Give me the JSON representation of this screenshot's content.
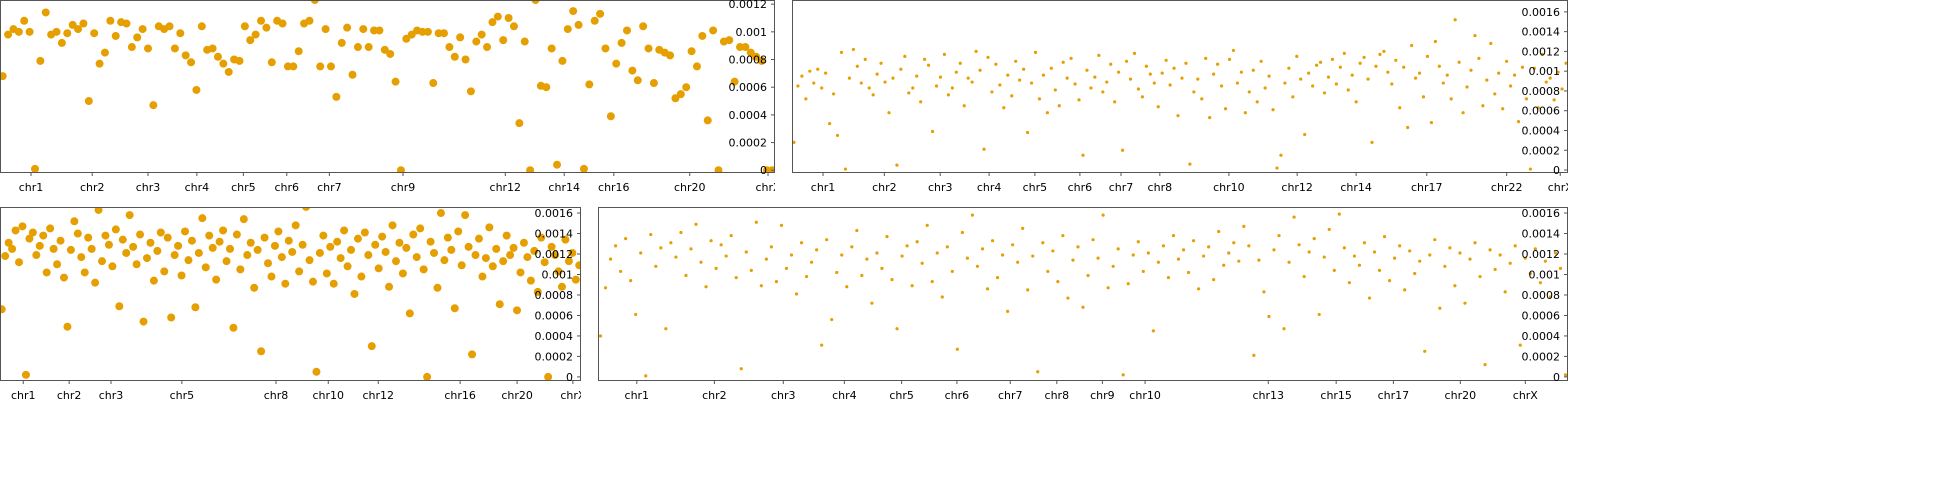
{
  "chart_data": [
    {
      "type": "scatter",
      "color": "#e69f00",
      "marker_size": 4,
      "xlim": [
        0,
        1
      ],
      "ylim": [
        -2e-05,
        0.00123
      ],
      "yticks": [
        0,
        0.0002,
        0.0004,
        0.0006,
        0.0008,
        0.001,
        0.0012
      ],
      "xticks": [
        {
          "value": 0.04,
          "label": "chr1"
        },
        {
          "value": 0.119,
          "label": "chr2"
        },
        {
          "value": 0.191,
          "label": "chr3"
        },
        {
          "value": 0.254,
          "label": "chr4"
        },
        {
          "value": 0.314,
          "label": "chr5"
        },
        {
          "value": 0.37,
          "label": "chr6"
        },
        {
          "value": 0.425,
          "label": "chr7"
        },
        {
          "value": 0.52,
          "label": "chr9"
        },
        {
          "value": 0.652,
          "label": "chr12"
        },
        {
          "value": 0.728,
          "label": "chr14"
        },
        {
          "value": 0.792,
          "label": "chr16"
        },
        {
          "value": 0.89,
          "label": "chr20"
        },
        {
          "value": 0.991,
          "label": "chrX"
        }
      ],
      "values": [
        0.00068,
        0.00098,
        0.00102,
        0.001,
        0.00108,
        0.001,
        1e-05,
        0.00079,
        0.00114,
        0.00098,
        0.001,
        0.00092,
        0.00099,
        0.00105,
        0.00102,
        0.00106,
        0.0005,
        0.00099,
        0.00077,
        0.00085,
        0.00108,
        0.00097,
        0.00107,
        0.00106,
        0.00089,
        0.00096,
        0.00102,
        0.00088,
        0.00047,
        0.00104,
        0.00102,
        0.00104,
        0.00088,
        0.00099,
        0.00083,
        0.00078,
        0.00058,
        0.00104,
        0.00087,
        0.00088,
        0.00082,
        0.00077,
        0.00071,
        0.0008,
        0.00079,
        0.00104,
        0.00094,
        0.00098,
        0.00108,
        0.00103,
        0.00078,
        0.00108,
        0.00106,
        0.00075,
        0.00075,
        0.00086,
        0.00106,
        0.00108,
        0.00123,
        0.00075,
        0.00102,
        0.00075,
        0.00053,
        0.00092,
        0.00103,
        0.00069,
        0.00089,
        0.00102,
        0.00089,
        0.00101,
        0.00101,
        0.00087,
        0.00084,
        0.00064,
        0,
        0.00095,
        0.00098,
        0.00101,
        0.001,
        0.001,
        0.00063,
        0.00099,
        0.00099,
        0.00089,
        0.00082,
        0.00096,
        0.0008,
        0.00057,
        0.00093,
        0.00098,
        0.00089,
        0.00107,
        0.00111,
        0.00094,
        0.0011,
        0.00104,
        0.00034,
        0.00093,
        0,
        0.00123,
        0.00061,
        0.0006,
        0.00088,
        4e-05,
        0.00079,
        0.00102,
        0.00115,
        0.00105,
        1e-05,
        0.00062,
        0.00108,
        0.00113,
        0.00088,
        0.00039,
        0.00077,
        0.00092,
        0.00101,
        0.00072,
        0.00065,
        0.00104,
        0.00088,
        0.00063,
        0.00087,
        0.00085,
        0.00083,
        0.00052,
        0.00055,
        0.0006,
        0.00086,
        0.00075,
        0.00097,
        0.00036,
        0.00101,
        0,
        0.00093,
        0.00094,
        0.00064,
        0.00089,
        0.00089,
        0.00085,
        0.00082,
        0.00079,
        0,
        0
      ]
    },
    {
      "type": "scatter",
      "color": "#e69f00",
      "marker_size": 1.6,
      "xlim": [
        0,
        1
      ],
      "ylim": [
        -3e-05,
        0.00172
      ],
      "yticks": [
        0,
        0.0002,
        0.0004,
        0.0006,
        0.0008,
        0.001,
        0.0012,
        0.0014,
        0.0016
      ],
      "xticks": [
        {
          "value": 0.04,
          "label": "chr1"
        },
        {
          "value": 0.119,
          "label": "chr2"
        },
        {
          "value": 0.191,
          "label": "chr3"
        },
        {
          "value": 0.254,
          "label": "chr4"
        },
        {
          "value": 0.313,
          "label": "chr5"
        },
        {
          "value": 0.371,
          "label": "chr6"
        },
        {
          "value": 0.424,
          "label": "chr7"
        },
        {
          "value": 0.474,
          "label": "chr8"
        },
        {
          "value": 0.563,
          "label": "chr10"
        },
        {
          "value": 0.651,
          "label": "chr12"
        },
        {
          "value": 0.727,
          "label": "chr14"
        },
        {
          "value": 0.818,
          "label": "chr17"
        },
        {
          "value": 0.921,
          "label": "chr22"
        },
        {
          "value": 0.99,
          "label": "chrX"
        }
      ],
      "values": [
        0.00028,
        0.00085,
        0.00095,
        0.00072,
        0.001,
        0.00088,
        0.00102,
        0.00083,
        0.00098,
        0.00047,
        0.00077,
        0.00035,
        0.00119,
        1e-05,
        0.00093,
        0.00122,
        0.00105,
        0.00088,
        0.00112,
        0.00083,
        0.00076,
        0.00097,
        0.00108,
        0.00089,
        0.00058,
        0.00093,
        5e-05,
        0.00102,
        0.00115,
        0.00078,
        0.00083,
        0.00095,
        0.00069,
        0.00112,
        0.00106,
        0.00039,
        0.00085,
        0.00094,
        0.00117,
        0.00076,
        0.00083,
        0.00099,
        0.00108,
        0.00065,
        0.00093,
        0.00089,
        0.0012,
        0.00101,
        0.00021,
        0.00114,
        0.00079,
        0.00107,
        0.00086,
        0.00063,
        0.00096,
        0.00075,
        0.0011,
        0.00091,
        0.00102,
        0.00038,
        0.00088,
        0.00119,
        0.00072,
        0.00096,
        0.00058,
        0.00103,
        0.00081,
        0.00065,
        0.00109,
        0.00093,
        0.00113,
        0.00087,
        0.00071,
        0.00015,
        0.00101,
        0.00083,
        0.00094,
        0.00116,
        0.00079,
        0.00089,
        0.00107,
        0.00069,
        0.00099,
        0.0002,
        0.0011,
        0.00092,
        0.00118,
        0.00082,
        0.00074,
        0.00105,
        0.00097,
        0.00088,
        0.00064,
        0.00098,
        0.00111,
        0.00086,
        0.00103,
        0.00055,
        0.00093,
        0.00108,
        6e-05,
        0.00079,
        0.00092,
        0.00072,
        0.00113,
        0.00053,
        0.00097,
        0.00107,
        0.00085,
        0.00062,
        0.00112,
        0.00121,
        0.00088,
        0.00099,
        0.00058,
        0.00079,
        0.00101,
        0.00069,
        0.0011,
        0.00083,
        0.00095,
        0.00061,
        2e-05,
        0.00015,
        0.00088,
        0.00103,
        0.00074,
        0.00115,
        0.00092,
        0.00036,
        0.00098,
        0.00085,
        0.00106,
        0.00109,
        0.00078,
        0.00094,
        0.00112,
        0.00087,
        0.00104,
        0.00118,
        0.00081,
        0.00096,
        0.00069,
        0.00108,
        0.00114,
        0.00092,
        0.00028,
        0.00105,
        0.00117,
        0.0012,
        0.00099,
        0.00087,
        0.00111,
        0.00063,
        0.00104,
        0.00043,
        0.00126,
        0.00093,
        0.00098,
        0.00074,
        0.00115,
        0.00048,
        0.0013,
        0.00105,
        0.00088,
        0.00096,
        0.00072,
        0.00152,
        0.00109,
        0.00058,
        0.00084,
        0.00101,
        0.00136,
        0.00113,
        0.00065,
        0.00091,
        0.00128,
        0.00077,
        0.00098,
        0.00062,
        0.0011,
        0.00085,
        0.00096,
        0.00049,
        0.00104,
        0.00072,
        1e-05,
        0.00103,
        0.00063,
        0.00117,
        0.00089,
        0.00093,
        0.00071,
        0.00099,
        0.00082,
        0.00108
      ]
    },
    {
      "type": "scatter",
      "color": "#e69f00",
      "marker_size": 4,
      "xlim": [
        0,
        1
      ],
      "ylim": [
        -4e-05,
        0.001659
      ],
      "yticks": [
        0,
        0.0002,
        0.0004,
        0.0006,
        0.0008,
        0.001,
        0.0012,
        0.0014,
        0.0016
      ],
      "xticks": [
        {
          "value": 0.04,
          "label": "chr1"
        },
        {
          "value": 0.119,
          "label": "chr2"
        },
        {
          "value": 0.191,
          "label": "chr3"
        },
        {
          "value": 0.313,
          "label": "chr5"
        },
        {
          "value": 0.475,
          "label": "chr8"
        },
        {
          "value": 0.565,
          "label": "chr10"
        },
        {
          "value": 0.651,
          "label": "chr12"
        },
        {
          "value": 0.792,
          "label": "chr16"
        },
        {
          "value": 0.89,
          "label": "chr20"
        },
        {
          "value": 0.986,
          "label": "chrX"
        }
      ],
      "values": [
        0.00066,
        0.00118,
        0.00131,
        0.00125,
        0.00143,
        0.00112,
        0.00147,
        2e-05,
        0.00135,
        0.00141,
        0.00119,
        0.00128,
        0.00138,
        0.00102,
        0.00145,
        0.00125,
        0.0011,
        0.00133,
        0.00097,
        0.00049,
        0.00124,
        0.00152,
        0.0014,
        0.00117,
        0.00102,
        0.00136,
        0.00125,
        0.00092,
        0.00163,
        0.00113,
        0.00138,
        0.00129,
        0.00108,
        0.00144,
        0.00069,
        0.00134,
        0.00121,
        0.00158,
        0.00127,
        0.0011,
        0.00139,
        0.00054,
        0.00116,
        0.00131,
        0.00094,
        0.00123,
        0.00141,
        0.00103,
        0.00136,
        0.00058,
        0.00119,
        0.00128,
        0.00099,
        0.00142,
        0.00114,
        0.00133,
        0.00068,
        0.00121,
        0.00155,
        0.00107,
        0.00138,
        0.00126,
        0.00095,
        0.00132,
        0.00143,
        0.00113,
        0.00125,
        0.00048,
        0.00139,
        0.00105,
        0.00154,
        0.00119,
        0.00131,
        0.00087,
        0.00124,
        0.00025,
        0.00136,
        0.00111,
        0.00098,
        0.00128,
        0.00142,
        0.00117,
        0.00091,
        0.00133,
        0.00122,
        0.00148,
        0.00103,
        0.00129,
        0.00166,
        0.00114,
        0.00093,
        5e-05,
        0.00121,
        0.00138,
        0.00101,
        0.00127,
        0.00091,
        0.00132,
        0.00116,
        0.00143,
        0.00108,
        0.00124,
        0.00081,
        0.00135,
        0.00098,
        0.00141,
        0.00119,
        0.0003,
        0.00129,
        0.00106,
        0.00137,
        0.00122,
        0.00088,
        0.00148,
        0.00113,
        0.00131,
        0.00101,
        0.00126,
        0.00062,
        0.00139,
        0.00117,
        0.00145,
        0.00105,
        0,
        0.00132,
        0.00121,
        0.00087,
        0.0016,
        0.00114,
        0.00136,
        0.00124,
        0.00067,
        0.00142,
        0.00109,
        0.00158,
        0.00127,
        0.00022,
        0.00119,
        0.00135,
        0.00098,
        0.00116,
        0.00146,
        0.00108,
        0.00125,
        0.00071,
        0.00113,
        0.00138,
        0.00119,
        0.00126,
        0.00065,
        0.00102,
        0.00131,
        0.00117,
        0.00094,
        0.00123,
        0.00083,
        0.00136,
        0.00112,
        0,
        0.00127,
        0.00119,
        0.00103,
        0.00088,
        0.00134,
        0.00113,
        0.00121,
        0.00095,
        0.00109
      ]
    },
    {
      "type": "scatter",
      "color": "#e69f00",
      "marker_size": 1.6,
      "xlim": [
        0,
        1
      ],
      "ylim": [
        -4e-05,
        0.001659
      ],
      "yticks": [
        0,
        0.0002,
        0.0004,
        0.0006,
        0.0008,
        0.001,
        0.0012,
        0.0014,
        0.0016
      ],
      "xticks": [
        {
          "value": 0.04,
          "label": "chr1"
        },
        {
          "value": 0.12,
          "label": "chr2"
        },
        {
          "value": 0.191,
          "label": "chr3"
        },
        {
          "value": 0.254,
          "label": "chr4"
        },
        {
          "value": 0.313,
          "label": "chr5"
        },
        {
          "value": 0.37,
          "label": "chr6"
        },
        {
          "value": 0.425,
          "label": "chr7"
        },
        {
          "value": 0.473,
          "label": "chr8"
        },
        {
          "value": 0.52,
          "label": "chr9"
        },
        {
          "value": 0.564,
          "label": "chr10"
        },
        {
          "value": 0.691,
          "label": "chr13"
        },
        {
          "value": 0.761,
          "label": "chr15"
        },
        {
          "value": 0.82,
          "label": "chr17"
        },
        {
          "value": 0.889,
          "label": "chr20"
        },
        {
          "value": 0.956,
          "label": "chrX"
        }
      ],
      "values": [
        0.0004,
        0.00087,
        0.00115,
        0.00128,
        0.00103,
        0.00135,
        0.00094,
        0.00061,
        0.00121,
        1e-05,
        0.00139,
        0.00108,
        0.00126,
        0.00047,
        0.00131,
        0.00117,
        0.00141,
        0.00099,
        0.00125,
        0.00149,
        0.00112,
        0.00088,
        0.00133,
        0.00106,
        0.00129,
        0.00118,
        0.00138,
        0.00097,
        8e-05,
        0.00122,
        0.00104,
        0.00151,
        0.00089,
        0.00115,
        0.00127,
        0.00093,
        0.00148,
        0.00106,
        0.00119,
        0.00081,
        0.00131,
        0.00098,
        0.00112,
        0.00124,
        0.00031,
        0.00134,
        0.00056,
        0.00102,
        0.00119,
        0.00088,
        0.00127,
        0.00143,
        0.00099,
        0.00115,
        0.00072,
        0.00121,
        0.00106,
        0.00137,
        0.00095,
        0.00047,
        0.00118,
        0.00128,
        0.00089,
        0.00132,
        0.00111,
        0.00148,
        0.00093,
        0.00121,
        0.00078,
        0.00127,
        0.00103,
        0.00027,
        0.00141,
        0.00116,
        0.00158,
        0.00108,
        0.00125,
        0.00086,
        0.00133,
        0.00097,
        0.00119,
        0.00064,
        0.00129,
        0.00112,
        0.00145,
        0.00085,
        0.00118,
        5e-05,
        0.00131,
        0.00103,
        0.00123,
        0.00093,
        0.00138,
        0.00077,
        0.00114,
        0.00127,
        0.00068,
        0.00099,
        0.00134,
        0.00116,
        0.00158,
        0.00087,
        0.00108,
        0.00125,
        2e-05,
        0.00091,
        0.00119,
        0.00132,
        0.00103,
        0.00121,
        0.00045,
        0.00112,
        0.00128,
        0.00097,
        0.00138,
        0.00115,
        0.00124,
        0.00102,
        0.00133,
        0.00086,
        0.00118,
        0.00127,
        0.00095,
        0.00142,
        0.00109,
        0.00121,
        0.00131,
        0.00113,
        0.00147,
        0.00128,
        0.00021,
        0.00114,
        0.00083,
        0.00059,
        0.00124,
        0.00138,
        0.00047,
        0.00112,
        0.00156,
        0.00129,
        0.00098,
        0.00122,
        0.00135,
        0.00061,
        0.00117,
        0.00144,
        0.00104,
        0.00159,
        0.00126,
        0.00092,
        0.00118,
        0.00109,
        0.00131,
        0.00077,
        0.00122,
        0.00104,
        0.00137,
        0.00094,
        0.00116,
        0.00128,
        0.00085,
        0.00123,
        0.00101,
        0.00113,
        0.00025,
        0.00119,
        0.00134,
        0.00067,
        0.00108,
        0.00126,
        0.00089,
        0.00121,
        0.00072,
        0.00115,
        0.00131,
        0.00098,
        0.00012,
        0.00124,
        0.00105,
        0.00119,
        0.00083,
        0.00111,
        0.00128,
        0.00031,
        0.00116,
        0.00101,
        0.00125,
        0.00092,
        0.00113,
        0.00078,
        0.00121,
        0.00106,
        2e-05
      ]
    }
  ]
}
